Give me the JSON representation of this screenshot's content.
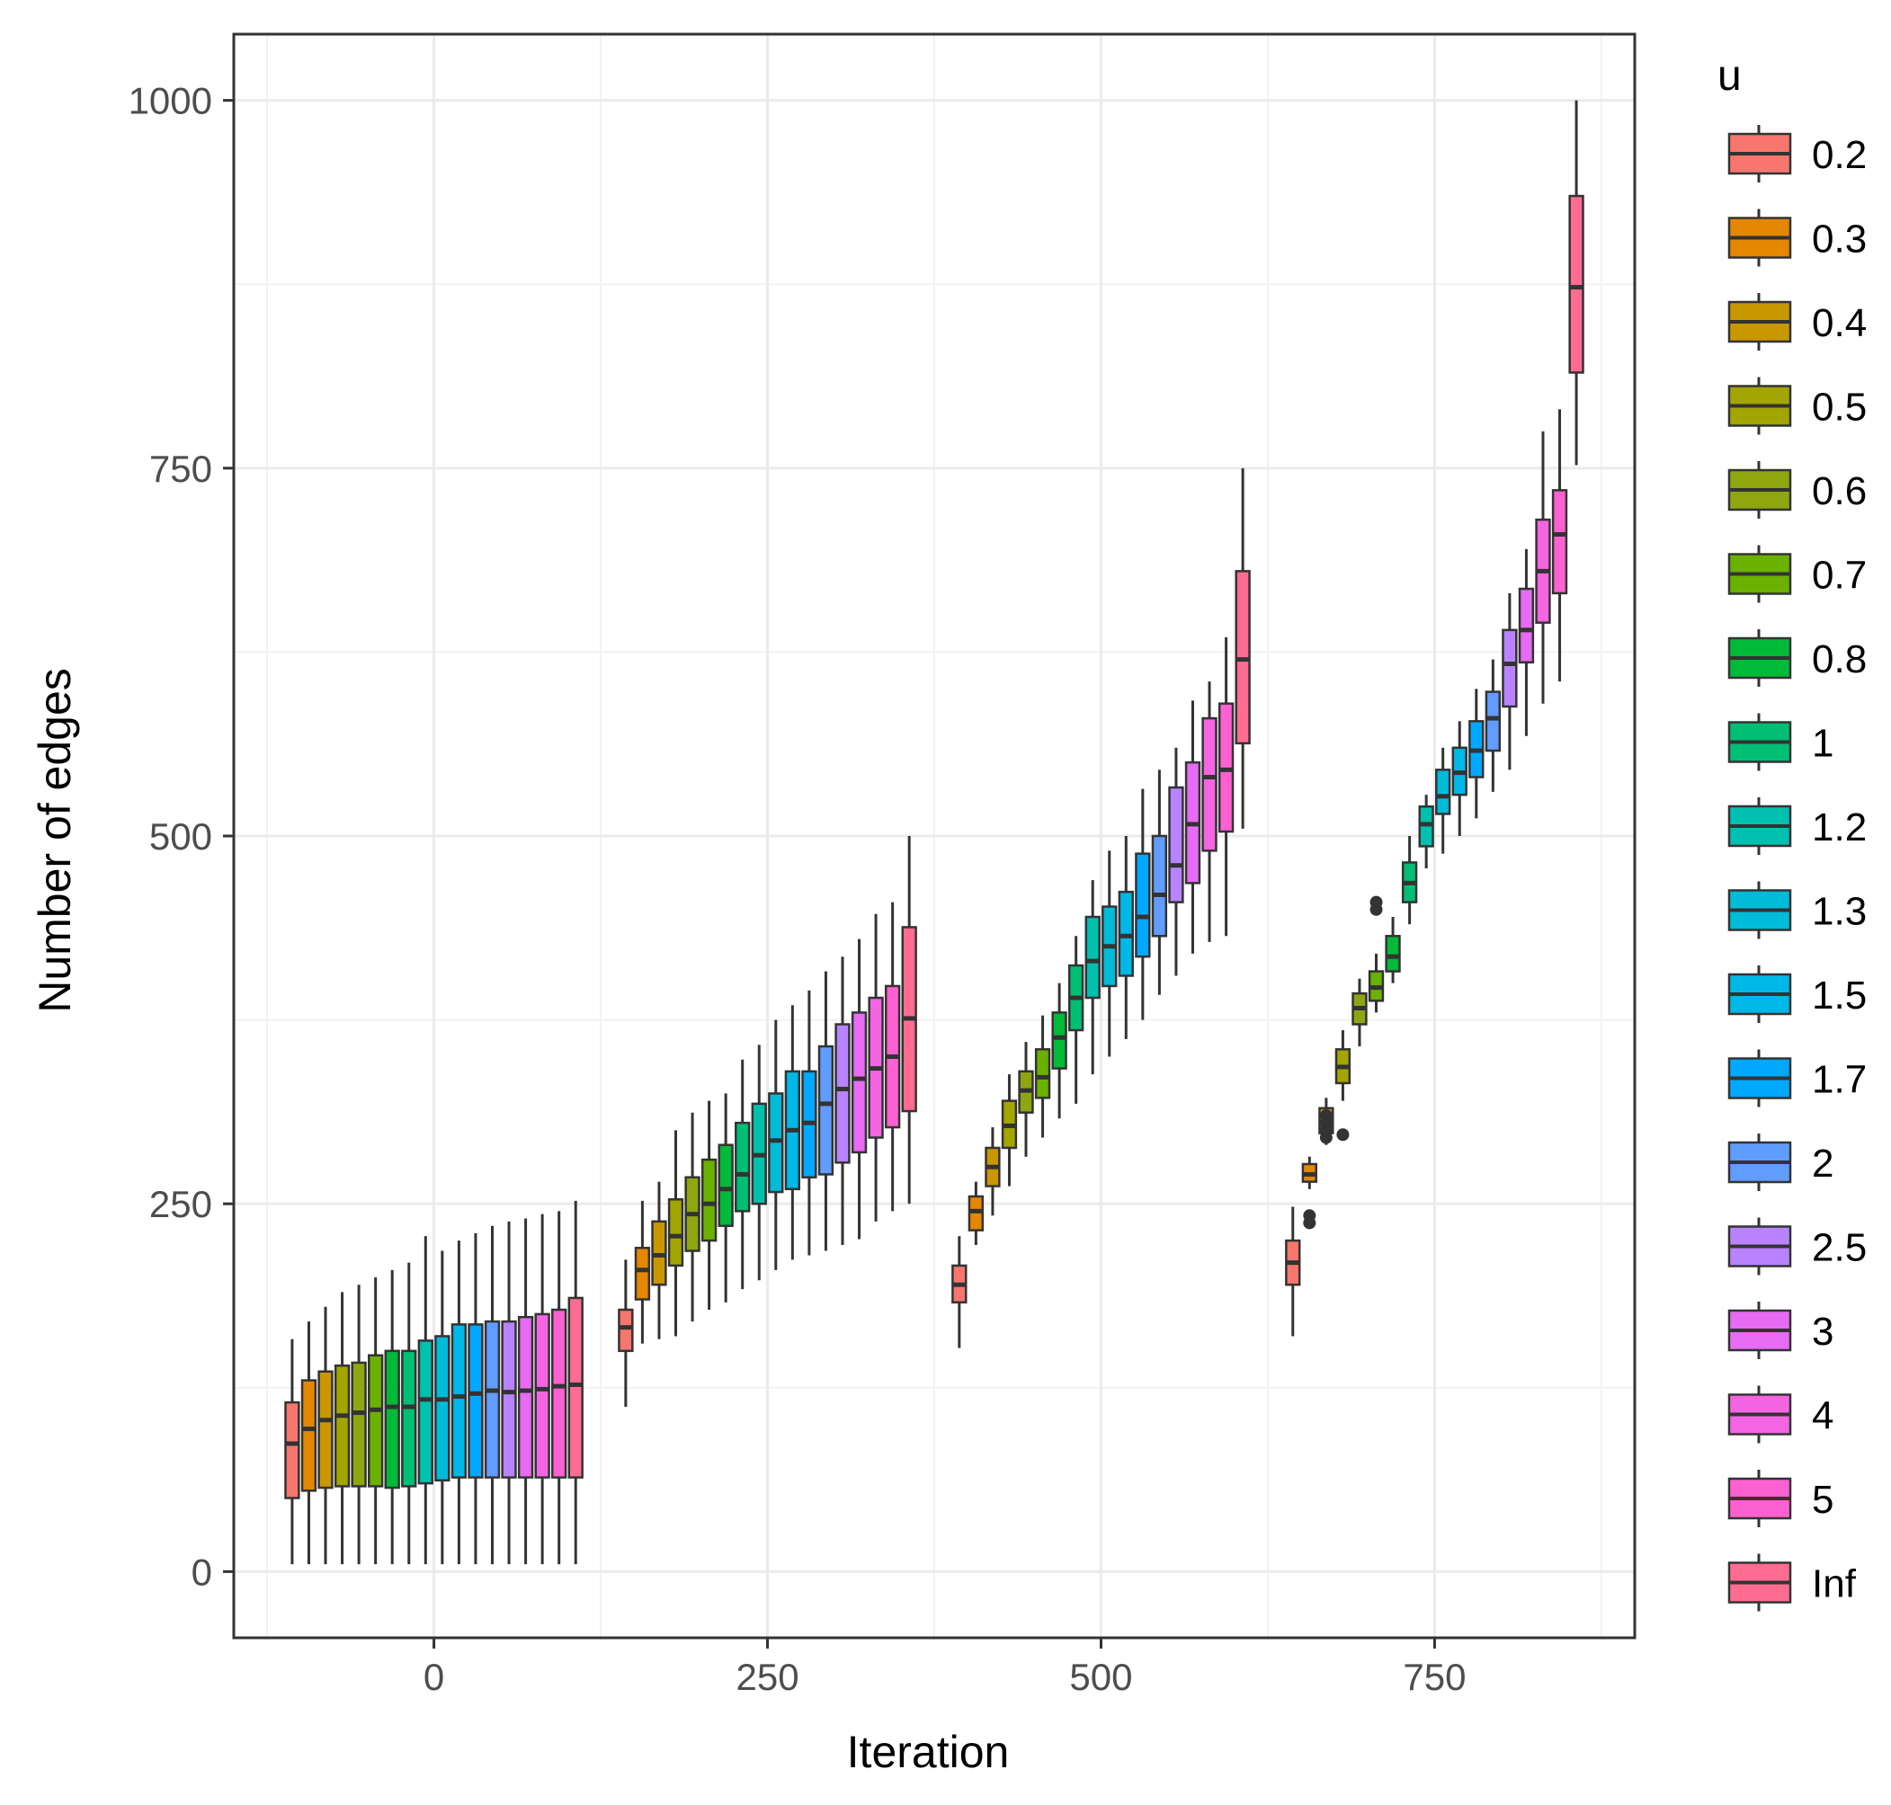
{
  "chart_data": {
    "type": "box",
    "xlabel": "Iteration",
    "ylabel": "Number of edges",
    "xlim": [
      -150,
      900
    ],
    "ylim": [
      -45,
      1045
    ],
    "x_ticks": [
      0,
      250,
      500,
      750
    ],
    "x_tick_labels": [
      "0",
      "250",
      "500",
      "750"
    ],
    "y_ticks": [
      0,
      250,
      500,
      750,
      1000
    ],
    "y_tick_labels": [
      "0",
      "250",
      "500",
      "750",
      "1000"
    ],
    "grid": true,
    "legend_position": "right",
    "legend": {
      "title": "u",
      "entries": [
        {
          "label": "0.2",
          "color": "#F8766D"
        },
        {
          "label": "0.3",
          "color": "#E58700"
        },
        {
          "label": "0.4",
          "color": "#C99800"
        },
        {
          "label": "0.5",
          "color": "#A3A500"
        },
        {
          "label": "0.6",
          "color": "#8FA611"
        },
        {
          "label": "0.7",
          "color": "#6BB100"
        },
        {
          "label": "0.8",
          "color": "#00BA38"
        },
        {
          "label": "1",
          "color": "#00BF74"
        },
        {
          "label": "1.2",
          "color": "#00C0AF"
        },
        {
          "label": "1.3",
          "color": "#00BCD8"
        },
        {
          "label": "1.5",
          "color": "#00B8E7"
        },
        {
          "label": "1.7",
          "color": "#00A9FF"
        },
        {
          "label": "2",
          "color": "#619CFF"
        },
        {
          "label": "2.5",
          "color": "#B983FF"
        },
        {
          "label": "3",
          "color": "#E76BF3"
        },
        {
          "label": "4",
          "color": "#F564E3"
        },
        {
          "label": "5",
          "color": "#FD61D1"
        },
        {
          "label": "Inf",
          "color": "#FF6C91"
        }
      ]
    },
    "groups": [
      {
        "center": 0,
        "boxes": [
          {
            "u": "0.2",
            "min": 5,
            "q1": 50,
            "median": 87,
            "q3": 115,
            "max": 158
          },
          {
            "u": "0.3",
            "min": 5,
            "q1": 55,
            "median": 97,
            "q3": 130,
            "max": 170
          },
          {
            "u": "0.4",
            "min": 5,
            "q1": 57,
            "median": 103,
            "q3": 136,
            "max": 180
          },
          {
            "u": "0.5",
            "min": 5,
            "q1": 58,
            "median": 106,
            "q3": 140,
            "max": 190
          },
          {
            "u": "0.6",
            "min": 5,
            "q1": 58,
            "median": 108,
            "q3": 142,
            "max": 195
          },
          {
            "u": "0.7",
            "min": 5,
            "q1": 58,
            "median": 110,
            "q3": 147,
            "max": 200
          },
          {
            "u": "0.8",
            "min": 5,
            "q1": 57,
            "median": 112,
            "q3": 150,
            "max": 205
          },
          {
            "u": "1",
            "min": 5,
            "q1": 58,
            "median": 112,
            "q3": 150,
            "max": 210
          },
          {
            "u": "1.2",
            "min": 5,
            "q1": 60,
            "median": 117,
            "q3": 157,
            "max": 228
          },
          {
            "u": "1.3",
            "min": 5,
            "q1": 62,
            "median": 117,
            "q3": 160,
            "max": 218
          },
          {
            "u": "1.5",
            "min": 5,
            "q1": 64,
            "median": 119,
            "q3": 168,
            "max": 225
          },
          {
            "u": "1.7",
            "min": 5,
            "q1": 64,
            "median": 121,
            "q3": 168,
            "max": 230
          },
          {
            "u": "2",
            "min": 5,
            "q1": 64,
            "median": 123,
            "q3": 170,
            "max": 235
          },
          {
            "u": "2.5",
            "min": 5,
            "q1": 64,
            "median": 122,
            "q3": 170,
            "max": 238
          },
          {
            "u": "3",
            "min": 5,
            "q1": 64,
            "median": 123,
            "q3": 173,
            "max": 240
          },
          {
            "u": "4",
            "min": 5,
            "q1": 64,
            "median": 124,
            "q3": 175,
            "max": 243
          },
          {
            "u": "5",
            "min": 5,
            "q1": 64,
            "median": 126,
            "q3": 178,
            "max": 245
          },
          {
            "u": "Inf",
            "min": 5,
            "q1": 64,
            "median": 127,
            "q3": 186,
            "max": 252
          }
        ]
      },
      {
        "center": 250,
        "boxes": [
          {
            "u": "0.2",
            "min": 112,
            "q1": 150,
            "median": 166,
            "q3": 178,
            "max": 212
          },
          {
            "u": "0.3",
            "min": 155,
            "q1": 185,
            "median": 205,
            "q3": 220,
            "max": 252
          },
          {
            "u": "0.4",
            "min": 158,
            "q1": 195,
            "median": 215,
            "q3": 238,
            "max": 265
          },
          {
            "u": "0.5",
            "min": 160,
            "q1": 208,
            "median": 228,
            "q3": 253,
            "max": 300
          },
          {
            "u": "0.6",
            "min": 170,
            "q1": 218,
            "median": 243,
            "q3": 268,
            "max": 312
          },
          {
            "u": "0.7",
            "min": 178,
            "q1": 225,
            "median": 250,
            "q3": 280,
            "max": 320
          },
          {
            "u": "0.8",
            "min": 183,
            "q1": 235,
            "median": 260,
            "q3": 290,
            "max": 325
          },
          {
            "u": "1",
            "min": 192,
            "q1": 245,
            "median": 270,
            "q3": 305,
            "max": 348
          },
          {
            "u": "1.2",
            "min": 198,
            "q1": 250,
            "median": 283,
            "q3": 318,
            "max": 358
          },
          {
            "u": "1.3",
            "min": 205,
            "q1": 258,
            "median": 293,
            "q3": 325,
            "max": 375
          },
          {
            "u": "1.5",
            "min": 212,
            "q1": 260,
            "median": 300,
            "q3": 340,
            "max": 385
          },
          {
            "u": "1.7",
            "min": 215,
            "q1": 268,
            "median": 305,
            "q3": 340,
            "max": 395
          },
          {
            "u": "2",
            "min": 218,
            "q1": 270,
            "median": 318,
            "q3": 357,
            "max": 408
          },
          {
            "u": "2.5",
            "min": 222,
            "q1": 278,
            "median": 328,
            "q3": 372,
            "max": 418
          },
          {
            "u": "3",
            "min": 226,
            "q1": 285,
            "median": 335,
            "q3": 380,
            "max": 430
          },
          {
            "u": "4",
            "min": 238,
            "q1": 295,
            "median": 342,
            "q3": 390,
            "max": 447
          },
          {
            "u": "5",
            "min": 245,
            "q1": 302,
            "median": 350,
            "q3": 398,
            "max": 455
          },
          {
            "u": "Inf",
            "min": 250,
            "q1": 313,
            "median": 376,
            "q3": 438,
            "max": 500
          }
        ]
      },
      {
        "center": 500,
        "boxes": [
          {
            "u": "0.2",
            "min": 152,
            "q1": 183,
            "median": 195,
            "q3": 208,
            "max": 228
          },
          {
            "u": "0.3",
            "min": 222,
            "q1": 232,
            "median": 245,
            "q3": 255,
            "max": 265
          },
          {
            "u": "0.4",
            "min": 242,
            "q1": 262,
            "median": 275,
            "q3": 288,
            "max": 302
          },
          {
            "u": "0.5",
            "min": 262,
            "q1": 288,
            "median": 303,
            "q3": 320,
            "max": 338
          },
          {
            "u": "0.6",
            "min": 282,
            "q1": 312,
            "median": 327,
            "q3": 340,
            "max": 360
          },
          {
            "u": "0.7",
            "min": 295,
            "q1": 322,
            "median": 336,
            "q3": 355,
            "max": 378
          },
          {
            "u": "0.8",
            "min": 308,
            "q1": 342,
            "median": 363,
            "q3": 380,
            "max": 400
          },
          {
            "u": "1",
            "min": 318,
            "q1": 368,
            "median": 390,
            "q3": 412,
            "max": 432
          },
          {
            "u": "1.2",
            "min": 338,
            "q1": 390,
            "median": 415,
            "q3": 445,
            "max": 470
          },
          {
            "u": "1.3",
            "min": 350,
            "q1": 398,
            "median": 425,
            "q3": 452,
            "max": 490
          },
          {
            "u": "1.5",
            "min": 362,
            "q1": 405,
            "median": 432,
            "q3": 462,
            "max": 500
          },
          {
            "u": "1.7",
            "min": 375,
            "q1": 418,
            "median": 445,
            "q3": 488,
            "max": 532
          },
          {
            "u": "2",
            "min": 392,
            "q1": 432,
            "median": 460,
            "q3": 500,
            "max": 545
          },
          {
            "u": "2.5",
            "min": 405,
            "q1": 455,
            "median": 480,
            "q3": 533,
            "max": 560
          },
          {
            "u": "3",
            "min": 420,
            "q1": 468,
            "median": 508,
            "q3": 550,
            "max": 592
          },
          {
            "u": "4",
            "min": 428,
            "q1": 490,
            "median": 540,
            "q3": 580,
            "max": 605
          },
          {
            "u": "5",
            "min": 432,
            "q1": 503,
            "median": 545,
            "q3": 590,
            "max": 635
          },
          {
            "u": "Inf",
            "min": 505,
            "q1": 563,
            "median": 620,
            "q3": 680,
            "max": 750
          }
        ]
      },
      {
        "center": 750,
        "boxes": [
          {
            "u": "0.2",
            "min": 160,
            "q1": 195,
            "median": 210,
            "q3": 225,
            "max": 248
          },
          {
            "u": "0.3",
            "min": 260,
            "q1": 265,
            "median": 270,
            "q3": 277,
            "max": 282,
            "outliers": [
              237,
              242
            ]
          },
          {
            "u": "0.4",
            "min": 290,
            "q1": 298,
            "median": 305,
            "q3": 315,
            "max": 322,
            "outliers": [
              295,
              300,
              305,
              310
            ]
          },
          {
            "u": "0.5",
            "min": 320,
            "q1": 332,
            "median": 343,
            "q3": 355,
            "max": 368,
            "outliers": [
              297
            ]
          },
          {
            "u": "0.6",
            "min": 357,
            "q1": 372,
            "median": 383,
            "q3": 393,
            "max": 403
          },
          {
            "u": "0.7",
            "min": 380,
            "q1": 388,
            "median": 397,
            "q3": 408,
            "max": 420,
            "outliers": [
              450,
              455
            ]
          },
          {
            "u": "0.8",
            "min": 400,
            "q1": 408,
            "median": 418,
            "q3": 432,
            "max": 445
          },
          {
            "u": "1",
            "min": 440,
            "q1": 455,
            "median": 468,
            "q3": 482,
            "max": 500
          },
          {
            "u": "1.2",
            "min": 478,
            "q1": 493,
            "median": 508,
            "q3": 520,
            "max": 528
          },
          {
            "u": "1.3",
            "min": 488,
            "q1": 515,
            "median": 527,
            "q3": 545,
            "max": 560
          },
          {
            "u": "1.5",
            "min": 500,
            "q1": 528,
            "median": 543,
            "q3": 560,
            "max": 578
          },
          {
            "u": "1.7",
            "min": 512,
            "q1": 540,
            "median": 558,
            "q3": 578,
            "max": 600
          },
          {
            "u": "2",
            "min": 530,
            "q1": 558,
            "median": 580,
            "q3": 598,
            "max": 620
          },
          {
            "u": "2.5",
            "min": 545,
            "q1": 588,
            "median": 617,
            "q3": 640,
            "max": 665
          },
          {
            "u": "3",
            "min": 568,
            "q1": 618,
            "median": 640,
            "q3": 668,
            "max": 695
          },
          {
            "u": "4",
            "min": 590,
            "q1": 645,
            "median": 680,
            "q3": 715,
            "max": 775
          },
          {
            "u": "5",
            "min": 605,
            "q1": 665,
            "median": 705,
            "q3": 735,
            "max": 790
          },
          {
            "u": "Inf",
            "min": 752,
            "q1": 815,
            "median": 873,
            "q3": 935,
            "max": 1000
          }
        ]
      }
    ]
  }
}
